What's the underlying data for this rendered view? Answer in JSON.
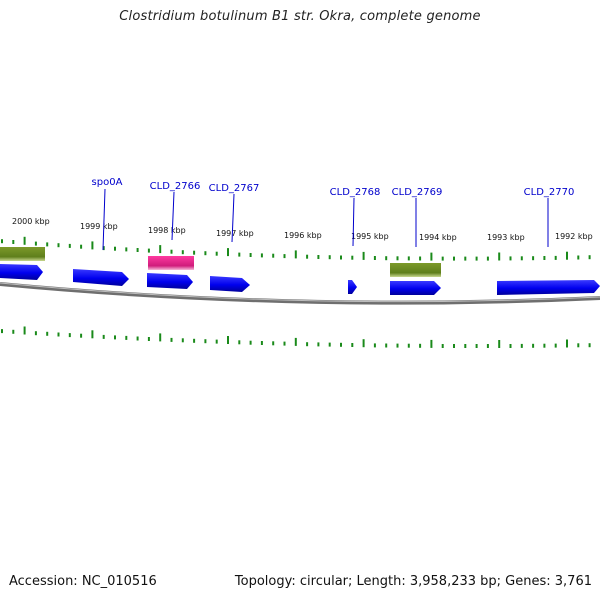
{
  "title": "Clostridium botulinum B1 str. Okra, complete genome",
  "footer": {
    "accession": "Accession: NC_010516",
    "summary": "Topology: circular; Length: 3,958,233 bp; Genes: 3,761"
  },
  "colors": {
    "background": "#ffffff",
    "gene_cds": "#0000ee",
    "gene_green": "#6b8e23",
    "gene_pink": "#e0208a",
    "tick": "#1a8a1a",
    "label": "#0000cc",
    "backbone": "#888888"
  },
  "scale_labels": [
    "2000 kbp",
    "1999 kbp",
    "1998 kbp",
    "1997 kbp",
    "1996 kbp",
    "1995 kbp",
    "1994 kbp",
    "1993 kbp",
    "1992 kbp"
  ],
  "gene_labels": [
    "spo0A",
    "CLD_2766",
    "CLD_2767",
    "CLD_2768",
    "CLD_2769",
    "CLD_2770"
  ]
}
